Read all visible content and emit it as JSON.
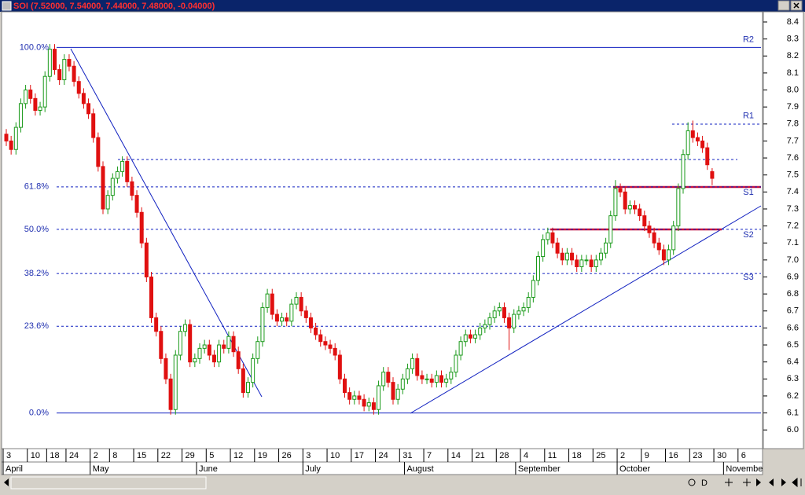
{
  "chart_data": {
    "type": "candlestick",
    "title": "SOI (7.52000, 7.54000, 7.44000, 7.48000, -0.04000)",
    "categories": [
      "3",
      null,
      null,
      null,
      null,
      "10",
      null,
      null,
      null,
      "18",
      null,
      null,
      null,
      "24",
      null,
      null,
      null,
      null,
      "2",
      null,
      null,
      null,
      "8",
      null,
      null,
      null,
      null,
      "15",
      null,
      null,
      null,
      null,
      "22",
      null,
      null,
      null,
      null,
      "29",
      null,
      null,
      null,
      null,
      "5",
      null,
      null,
      null,
      null,
      "12",
      null,
      null,
      null,
      null,
      "19",
      null,
      null,
      null,
      null,
      "26",
      null,
      null,
      null,
      null,
      "3",
      null,
      null,
      null,
      null,
      "10",
      null,
      null,
      null,
      null,
      "17",
      null,
      null,
      null,
      null,
      "24",
      null,
      null,
      null,
      null,
      "31",
      null,
      null,
      null,
      null,
      "7",
      null,
      null,
      null,
      null,
      "14",
      null,
      null,
      null,
      null,
      "21",
      null,
      null,
      null,
      null,
      "28",
      null,
      null,
      null,
      null,
      "4",
      null,
      null,
      null,
      null,
      "11",
      null,
      null,
      null,
      null,
      "18",
      null,
      null,
      null,
      null,
      "25",
      null,
      null,
      null,
      null,
      "2",
      null,
      null,
      null,
      null,
      "9",
      null,
      null,
      null,
      null,
      "16",
      null,
      null,
      null,
      null,
      "23",
      null,
      null,
      null,
      null,
      "30",
      null,
      null,
      null,
      null,
      "6",
      null,
      null,
      null,
      null
    ],
    "months": [
      "April",
      null,
      null,
      null,
      null,
      null,
      null,
      null,
      null,
      null,
      null,
      null,
      null,
      null,
      null,
      null,
      null,
      null,
      "May",
      null,
      null,
      null,
      null,
      null,
      null,
      null,
      null,
      null,
      null,
      null,
      null,
      null,
      null,
      null,
      null,
      null,
      null,
      null,
      null,
      null,
      "June",
      null,
      null,
      null,
      null,
      null,
      null,
      null,
      null,
      null,
      null,
      null,
      null,
      null,
      null,
      null,
      null,
      null,
      null,
      null,
      null,
      null,
      "July",
      null,
      null,
      null,
      null,
      null,
      null,
      null,
      null,
      null,
      null,
      null,
      null,
      null,
      null,
      null,
      null,
      null,
      null,
      null,
      null,
      "August",
      null,
      null,
      null,
      null,
      null,
      null,
      null,
      null,
      null,
      null,
      null,
      null,
      null,
      null,
      null,
      null,
      null,
      null,
      null,
      null,
      null,
      null,
      "September",
      null,
      null,
      null,
      null,
      null,
      null,
      null,
      null,
      null,
      null,
      null,
      null,
      null,
      null,
      null,
      null,
      null,
      null,
      null,
      null,
      "October",
      null,
      null,
      null,
      null,
      null,
      null,
      null,
      null,
      null,
      null,
      null,
      null,
      null,
      null,
      null,
      null,
      null,
      null,
      null,
      null,
      null,
      "November",
      null,
      null,
      null,
      null,
      null,
      null,
      null
    ],
    "ohlc": [
      [
        7.74,
        7.77,
        7.67,
        7.7
      ],
      [
        7.7,
        7.73,
        7.62,
        7.65
      ],
      [
        7.65,
        7.81,
        7.62,
        7.78
      ],
      [
        7.78,
        7.95,
        7.75,
        7.92
      ],
      [
        7.92,
        8.03,
        7.89,
        8.0
      ],
      [
        8.0,
        8.03,
        7.92,
        7.95
      ],
      [
        7.95,
        7.98,
        7.85,
        7.88
      ],
      [
        7.88,
        7.93,
        7.85,
        7.9
      ],
      [
        7.9,
        8.11,
        7.87,
        8.08
      ],
      [
        8.08,
        8.27,
        8.05,
        8.24
      ],
      [
        8.24,
        8.27,
        8.09,
        8.12
      ],
      [
        8.12,
        8.15,
        8.03,
        8.06
      ],
      [
        8.06,
        8.21,
        8.03,
        8.18
      ],
      [
        8.18,
        8.21,
        8.11,
        8.14
      ],
      [
        8.14,
        8.17,
        8.02,
        8.05
      ],
      [
        8.05,
        8.08,
        7.95,
        7.98
      ],
      [
        7.98,
        8.01,
        7.89,
        7.92
      ],
      [
        7.92,
        7.95,
        7.83,
        7.86
      ],
      [
        7.86,
        7.89,
        7.69,
        7.72
      ],
      [
        7.72,
        7.75,
        7.52,
        7.55
      ],
      [
        7.55,
        7.58,
        7.27,
        7.3
      ],
      [
        7.3,
        7.41,
        7.27,
        7.38
      ],
      [
        7.38,
        7.51,
        7.35,
        7.48
      ],
      [
        7.48,
        7.55,
        7.45,
        7.52
      ],
      [
        7.52,
        7.61,
        7.49,
        7.58
      ],
      [
        7.58,
        7.61,
        7.43,
        7.46
      ],
      [
        7.46,
        7.49,
        7.35,
        7.38
      ],
      [
        7.38,
        7.41,
        7.25,
        7.28
      ],
      [
        7.28,
        7.31,
        7.07,
        7.1
      ],
      [
        7.1,
        7.13,
        6.87,
        6.9
      ],
      [
        6.9,
        6.93,
        6.63,
        6.66
      ],
      [
        6.66,
        6.69,
        6.55,
        6.58
      ],
      [
        6.58,
        6.61,
        6.39,
        6.42
      ],
      [
        6.42,
        6.45,
        6.27,
        6.3
      ],
      [
        6.3,
        6.33,
        6.09,
        6.12
      ],
      [
        6.12,
        6.47,
        6.09,
        6.44
      ],
      [
        6.44,
        6.61,
        6.41,
        6.58
      ],
      [
        6.58,
        6.65,
        6.55,
        6.62
      ],
      [
        6.62,
        6.65,
        6.37,
        6.4
      ],
      [
        6.4,
        6.45,
        6.37,
        6.42
      ],
      [
        6.42,
        6.51,
        6.39,
        6.48
      ],
      [
        6.48,
        6.53,
        6.45,
        6.5
      ],
      [
        6.5,
        6.53,
        6.41,
        6.44
      ],
      [
        6.44,
        6.47,
        6.37,
        6.4
      ],
      [
        6.4,
        6.53,
        6.37,
        6.5
      ],
      [
        6.5,
        6.53,
        6.45,
        6.48
      ],
      [
        6.48,
        6.58,
        6.45,
        6.55
      ],
      [
        6.55,
        6.58,
        6.43,
        6.46
      ],
      [
        6.46,
        6.49,
        6.33,
        6.36
      ],
      [
        6.36,
        6.39,
        6.19,
        6.22
      ],
      [
        6.22,
        6.31,
        6.19,
        6.28
      ],
      [
        6.28,
        6.45,
        6.25,
        6.42
      ],
      [
        6.42,
        6.55,
        6.39,
        6.52
      ],
      [
        6.52,
        6.75,
        6.49,
        6.72
      ],
      [
        6.72,
        6.83,
        6.69,
        6.8
      ],
      [
        6.8,
        6.83,
        6.65,
        6.68
      ],
      [
        6.68,
        6.71,
        6.61,
        6.64
      ],
      [
        6.64,
        6.69,
        6.61,
        6.66
      ],
      [
        6.66,
        6.69,
        6.61,
        6.64
      ],
      [
        6.64,
        6.77,
        6.61,
        6.74
      ],
      [
        6.74,
        6.81,
        6.71,
        6.78
      ],
      [
        6.78,
        6.81,
        6.67,
        6.7
      ],
      [
        6.7,
        6.73,
        6.63,
        6.66
      ],
      [
        6.66,
        6.69,
        6.57,
        6.6
      ],
      [
        6.6,
        6.63,
        6.53,
        6.56
      ],
      [
        6.56,
        6.59,
        6.49,
        6.52
      ],
      [
        6.52,
        6.55,
        6.47,
        6.5
      ],
      [
        6.5,
        6.53,
        6.45,
        6.48
      ],
      [
        6.48,
        6.51,
        6.41,
        6.44
      ],
      [
        6.44,
        6.47,
        6.27,
        6.3
      ],
      [
        6.3,
        6.33,
        6.19,
        6.22
      ],
      [
        6.22,
        6.25,
        6.15,
        6.18
      ],
      [
        6.18,
        6.23,
        6.15,
        6.2
      ],
      [
        6.2,
        6.23,
        6.15,
        6.18
      ],
      [
        6.18,
        6.21,
        6.11,
        6.14
      ],
      [
        6.14,
        6.19,
        6.11,
        6.16
      ],
      [
        6.16,
        6.19,
        6.09,
        6.12
      ],
      [
        6.12,
        6.29,
        6.09,
        6.26
      ],
      [
        6.26,
        6.37,
        6.23,
        6.34
      ],
      [
        6.34,
        6.37,
        6.25,
        6.28
      ],
      [
        6.28,
        6.31,
        6.15,
        6.18
      ],
      [
        6.18,
        6.27,
        6.15,
        6.24
      ],
      [
        6.24,
        6.33,
        6.21,
        6.3
      ],
      [
        6.3,
        6.39,
        6.27,
        6.36
      ],
      [
        6.36,
        6.45,
        6.33,
        6.42
      ],
      [
        6.42,
        6.45,
        6.29,
        6.32
      ],
      [
        6.32,
        6.35,
        6.27,
        6.3
      ],
      [
        6.3,
        6.33,
        6.27,
        6.3
      ],
      [
        6.3,
        6.33,
        6.25,
        6.28
      ],
      [
        6.28,
        6.35,
        6.25,
        6.32
      ],
      [
        6.32,
        6.35,
        6.25,
        6.28
      ],
      [
        6.28,
        6.33,
        6.25,
        6.3
      ],
      [
        6.3,
        6.37,
        6.27,
        6.34
      ],
      [
        6.34,
        6.47,
        6.31,
        6.44
      ],
      [
        6.44,
        6.55,
        6.41,
        6.52
      ],
      [
        6.52,
        6.59,
        6.49,
        6.56
      ],
      [
        6.56,
        6.59,
        6.51,
        6.54
      ],
      [
        6.54,
        6.59,
        6.51,
        6.56
      ],
      [
        6.56,
        6.63,
        6.53,
        6.6
      ],
      [
        6.6,
        6.65,
        6.57,
        6.62
      ],
      [
        6.62,
        6.69,
        6.59,
        6.66
      ],
      [
        6.66,
        6.73,
        6.63,
        6.7
      ],
      [
        6.7,
        6.75,
        6.67,
        6.72
      ],
      [
        6.72,
        6.75,
        6.63,
        6.66
      ],
      [
        6.66,
        6.69,
        6.47,
        6.6
      ],
      [
        6.6,
        6.71,
        6.57,
        6.68
      ],
      [
        6.68,
        6.73,
        6.65,
        6.7
      ],
      [
        6.7,
        6.75,
        6.67,
        6.72
      ],
      [
        6.72,
        6.81,
        6.69,
        6.78
      ],
      [
        6.78,
        6.91,
        6.75,
        6.88
      ],
      [
        6.88,
        7.05,
        6.85,
        7.02
      ],
      [
        7.02,
        7.15,
        6.99,
        7.12
      ],
      [
        7.12,
        7.19,
        7.09,
        7.16
      ],
      [
        7.16,
        7.19,
        7.07,
        7.1
      ],
      [
        7.1,
        7.13,
        7.01,
        7.04
      ],
      [
        7.04,
        7.07,
        6.97,
        7.0
      ],
      [
        7.0,
        7.07,
        6.97,
        7.04
      ],
      [
        7.04,
        7.07,
        6.97,
        7.0
      ],
      [
        7.0,
        7.03,
        6.93,
        6.96
      ],
      [
        6.96,
        7.03,
        6.93,
        7.0
      ],
      [
        7.0,
        7.03,
        6.97,
        7.0
      ],
      [
        7.0,
        7.03,
        6.93,
        6.96
      ],
      [
        6.96,
        7.03,
        6.93,
        7.0
      ],
      [
        7.0,
        7.07,
        6.97,
        7.04
      ],
      [
        7.04,
        7.13,
        7.01,
        7.1
      ],
      [
        7.1,
        7.29,
        7.07,
        7.26
      ],
      [
        7.26,
        7.47,
        7.23,
        7.42
      ],
      [
        7.42,
        7.45,
        7.37,
        7.4
      ],
      [
        7.4,
        7.43,
        7.27,
        7.3
      ],
      [
        7.3,
        7.35,
        7.27,
        7.32
      ],
      [
        7.32,
        7.35,
        7.27,
        7.3
      ],
      [
        7.3,
        7.33,
        7.23,
        7.26
      ],
      [
        7.26,
        7.29,
        7.17,
        7.2
      ],
      [
        7.2,
        7.23,
        7.13,
        7.16
      ],
      [
        7.16,
        7.19,
        7.07,
        7.1
      ],
      [
        7.1,
        7.13,
        7.03,
        7.06
      ],
      [
        7.06,
        7.09,
        6.97,
        7.0
      ],
      [
        7.0,
        7.09,
        6.97,
        7.06
      ],
      [
        7.06,
        7.23,
        7.03,
        7.2
      ],
      [
        7.2,
        7.45,
        7.17,
        7.42
      ],
      [
        7.42,
        7.65,
        7.39,
        7.62
      ],
      [
        7.62,
        7.81,
        7.59,
        7.76
      ],
      [
        7.76,
        7.82,
        7.69,
        7.72
      ],
      [
        7.72,
        7.75,
        7.67,
        7.7
      ],
      [
        7.7,
        7.73,
        7.63,
        7.66
      ],
      [
        7.66,
        7.69,
        7.53,
        7.56
      ],
      [
        7.52,
        7.54,
        7.44,
        7.48
      ],
      null,
      null,
      null,
      null,
      null,
      null,
      null,
      null,
      null,
      null
    ],
    "up_color": "#1a9a1a",
    "down_color": "#e01010",
    "ylim": [
      5.89,
      8.46
    ],
    "yticks": [
      {
        "value": 6.0,
        "label": "6.0"
      },
      6.1,
      6.2,
      6.3,
      6.4,
      6.5,
      6.6,
      6.7,
      6.8,
      6.9,
      {
        "value": 7.0,
        "label": "7.0"
      },
      7.1,
      7.2,
      7.3,
      7.4,
      7.5,
      7.6,
      7.7,
      7.8,
      7.9,
      {
        "value": 8.0,
        "label": "8.0"
      },
      8.1,
      8.2,
      8.3,
      8.4
    ],
    "fib_levels": [
      {
        "label": "100.0%",
        "value": 8.25,
        "style": "solid"
      },
      {
        "label": "61.8%",
        "value": 7.43,
        "style": "dashed"
      },
      {
        "label": "50.0%",
        "value": 7.18,
        "style": "dashed"
      },
      {
        "label": "38.2%",
        "value": 6.92,
        "style": "dashed"
      },
      {
        "label": "23.6%",
        "value": 6.61,
        "style": "dashed"
      },
      {
        "label": "0.0%",
        "value": 6.1,
        "style": "solid"
      }
    ],
    "levels": [
      {
        "label": "R2",
        "value": 8.25
      },
      {
        "label": "R1",
        "value": 7.8
      },
      {
        "label": "S1",
        "value": 7.35
      },
      {
        "label": "S2",
        "value": 7.1
      },
      {
        "label": "S3",
        "value": 6.85
      }
    ]
  }
}
